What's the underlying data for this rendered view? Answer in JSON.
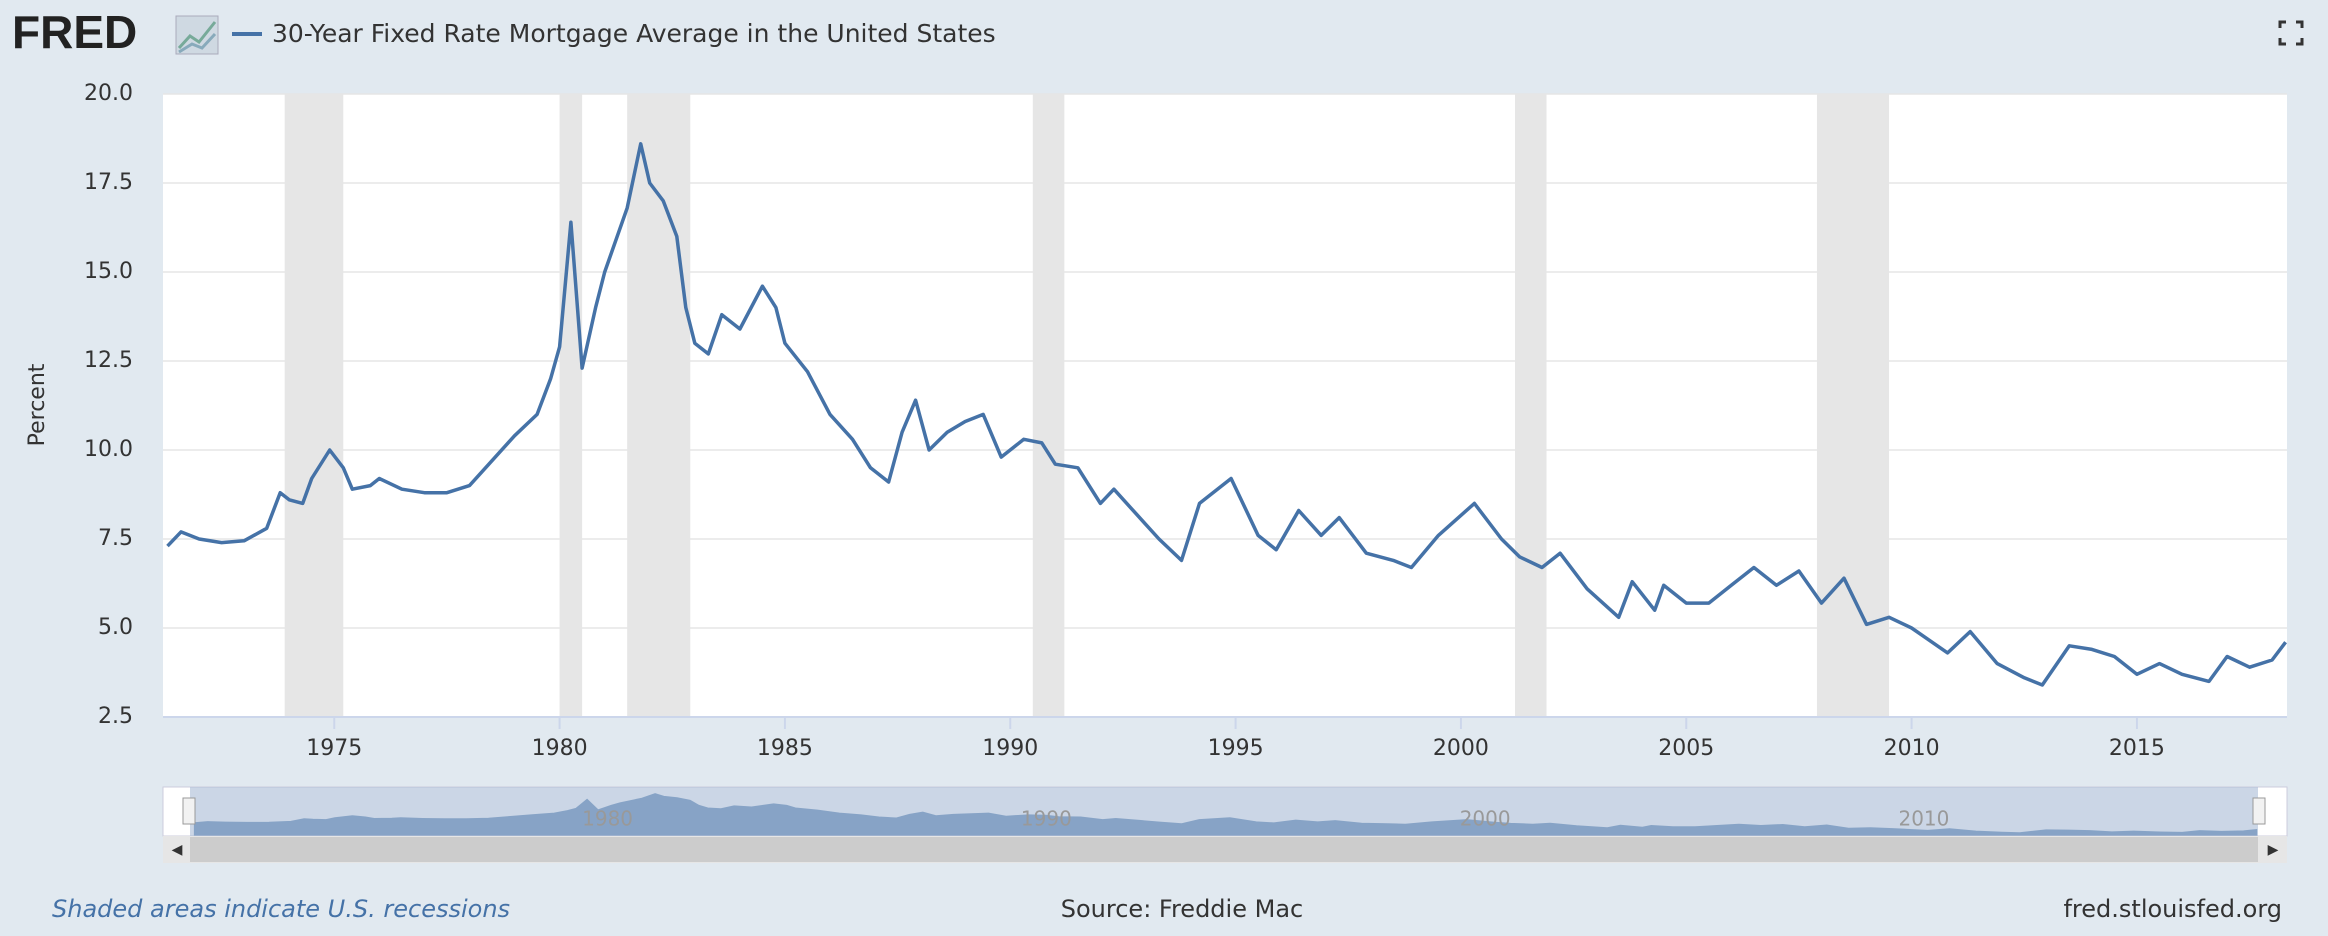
{
  "logo": "FRED",
  "note": "Shaded areas indicate U.S. recessions",
  "source": "Source: Freddie Mac",
  "site": "fred.stlouisfed.org",
  "chart_data": {
    "type": "line",
    "y_label": "Percent",
    "x": [
      1971.3,
      1971.6,
      1972.0,
      1972.5,
      1973.0,
      1973.5,
      1973.8,
      1974.0,
      1974.3,
      1974.5,
      1974.9,
      1975.2,
      1975.4,
      1975.8,
      1976.0,
      1976.5,
      1977.0,
      1977.5,
      1978.0,
      1978.5,
      1979.0,
      1979.5,
      1979.8,
      1980.0,
      1980.25,
      1980.5,
      1980.8,
      1981.0,
      1981.5,
      1981.8,
      1982.0,
      1982.3,
      1982.6,
      1982.8,
      1983.0,
      1983.3,
      1983.6,
      1984.0,
      1984.5,
      1984.8,
      1985.0,
      1985.5,
      1986.0,
      1986.5,
      1986.9,
      1987.3,
      1987.6,
      1987.9,
      1988.2,
      1988.6,
      1989.0,
      1989.4,
      1989.8,
      1990.3,
      1990.7,
      1991.0,
      1991.5,
      1992.0,
      1992.3,
      1992.8,
      1993.3,
      1993.8,
      1994.2,
      1994.9,
      1995.5,
      1995.9,
      1996.4,
      1996.9,
      1997.3,
      1997.9,
      1998.5,
      1998.9,
      1999.5,
      2000.3,
      2000.9,
      2001.3,
      2001.8,
      2002.2,
      2002.8,
      2003.5,
      2003.8,
      2004.3,
      2004.5,
      2005.0,
      2005.5,
      2006.0,
      2006.5,
      2007.0,
      2007.5,
      2008.0,
      2008.5,
      2009.0,
      2009.5,
      2010.0,
      2010.8,
      2011.3,
      2011.9,
      2012.5,
      2012.9,
      2013.5,
      2014.0,
      2014.5,
      2015.0,
      2015.5,
      2016.0,
      2016.6,
      2017.0,
      2017.5,
      2018.0,
      2018.3
    ],
    "series": [
      {
        "name": "30-Year Fixed Rate Mortgage Average in the United States",
        "color": "#4572a7",
        "values": [
          7.3,
          7.7,
          7.5,
          7.4,
          7.45,
          7.8,
          8.8,
          8.6,
          8.5,
          9.2,
          10.0,
          9.5,
          8.9,
          9.0,
          9.2,
          8.9,
          8.8,
          8.8,
          9.0,
          9.7,
          10.4,
          11.0,
          12.0,
          12.9,
          16.4,
          12.3,
          14.0,
          15.0,
          16.8,
          18.6,
          17.5,
          17.0,
          16.0,
          14.0,
          13.0,
          12.7,
          13.8,
          13.4,
          14.6,
          14.0,
          13.0,
          12.2,
          11.0,
          10.3,
          9.5,
          9.1,
          10.5,
          11.4,
          10.0,
          10.5,
          10.8,
          11.0,
          9.8,
          10.3,
          10.2,
          9.6,
          9.5,
          8.5,
          8.9,
          8.2,
          7.5,
          6.9,
          8.5,
          9.2,
          7.6,
          7.2,
          8.3,
          7.6,
          8.1,
          7.1,
          6.9,
          6.7,
          7.6,
          8.5,
          7.5,
          7.0,
          6.7,
          7.1,
          6.1,
          5.3,
          6.3,
          5.5,
          6.2,
          5.7,
          5.7,
          6.2,
          6.7,
          6.2,
          6.6,
          5.7,
          6.4,
          5.1,
          5.3,
          5.0,
          4.3,
          4.9,
          4.0,
          3.6,
          3.4,
          4.5,
          4.4,
          4.2,
          3.7,
          4.0,
          3.7,
          3.5,
          4.2,
          3.9,
          4.1,
          4.6
        ]
      }
    ],
    "recessions": [
      [
        1973.9,
        1975.2
      ],
      [
        1980.0,
        1980.5
      ],
      [
        1981.5,
        1982.9
      ],
      [
        1990.5,
        1991.2
      ],
      [
        2001.2,
        2001.9
      ],
      [
        2007.9,
        2009.5
      ]
    ],
    "recession_color": "#e6e6e6",
    "xlim": [
      1971.2,
      2018.33
    ],
    "xticks": [
      1975,
      1980,
      1985,
      1990,
      1995,
      2000,
      2005,
      2010,
      2015
    ],
    "ylim": [
      2.5,
      20
    ],
    "yticks": [
      2.5,
      {
        "value": 5,
        "label": "5.0"
      },
      7.5,
      {
        "value": 10,
        "label": "10.0"
      },
      12.5,
      {
        "value": 15,
        "label": "15.0"
      },
      17.5,
      {
        "value": 20,
        "label": "20.0"
      }
    ],
    "navigator_ticks": [
      1980,
      1990,
      2000,
      2010
    ],
    "grid": true
  }
}
